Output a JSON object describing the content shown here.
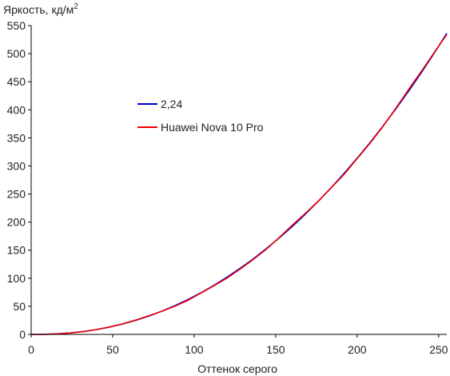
{
  "chart_data": {
    "type": "line",
    "xlabel": "Оттенок серого",
    "ylabel": {
      "text": "Яркость, кд/м",
      "superscript": "2"
    },
    "xlim": [
      0,
      255
    ],
    "ylim": [
      0,
      550
    ],
    "xticks": [
      0,
      50,
      100,
      150,
      200,
      250
    ],
    "yticks": [
      0,
      50,
      100,
      150,
      200,
      250,
      300,
      350,
      400,
      450,
      500,
      550
    ],
    "grid": false,
    "legend_position": "upper-left-middle",
    "series": [
      {
        "name": "2,24",
        "color": "#0000cc",
        "x": [
          0,
          8,
          16,
          24,
          32,
          40,
          48,
          56,
          64,
          72,
          80,
          88,
          96,
          104,
          112,
          120,
          128,
          136,
          144,
          152,
          160,
          168,
          176,
          184,
          192,
          200,
          208,
          216,
          224,
          232,
          240,
          248,
          255
        ],
        "y": [
          0,
          0.2,
          1.0,
          2.6,
          5.1,
          8.5,
          13.0,
          18.4,
          24.9,
          32.5,
          41.2,
          51.0,
          61.9,
          74.0,
          87.2,
          101.6,
          117.2,
          134.0,
          152.0,
          171.3,
          191.8,
          213.6,
          236.7,
          261.0,
          286.7,
          313.7,
          342.0,
          371.7,
          402.7,
          435.1,
          468.9,
          504.1,
          536.2
        ]
      },
      {
        "name": "Huawei Nova 10 Pro",
        "color": "#ee0000",
        "x": [
          0,
          8,
          16,
          24,
          32,
          40,
          48,
          56,
          64,
          72,
          80,
          88,
          96,
          104,
          112,
          120,
          128,
          136,
          144,
          152,
          160,
          168,
          176,
          184,
          192,
          200,
          208,
          216,
          224,
          232,
          240,
          248,
          255
        ],
        "y": [
          0,
          0.1,
          0.9,
          2.5,
          5.0,
          8.6,
          13.2,
          18.6,
          25.4,
          33.0,
          41.0,
          50.0,
          60.5,
          73.5,
          86.5,
          100.0,
          116.0,
          133.0,
          151.0,
          172.0,
          194.0,
          215.0,
          237.0,
          261.0,
          285.0,
          313.0,
          341.0,
          371.0,
          404.0,
          438.0,
          471.0,
          505.0,
          534.0
        ]
      }
    ]
  }
}
